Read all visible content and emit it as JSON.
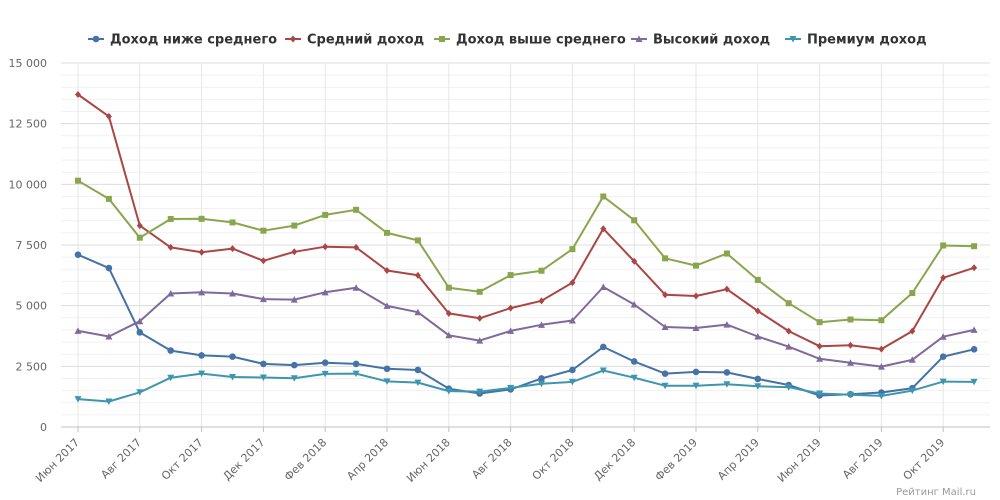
{
  "chart_data": {
    "type": "line",
    "title": "",
    "xlabel": "",
    "ylabel": "",
    "ylim": [
      0,
      15000
    ],
    "y_ticks": [
      0,
      2500,
      5000,
      7500,
      10000,
      12500,
      15000
    ],
    "y_tick_labels": [
      "0",
      "2 500",
      "5 000",
      "7 500",
      "10 000",
      "12 500",
      "15 000"
    ],
    "x_tick_labels": [
      "Июн 2017",
      "Авг 2017",
      "Окт 2017",
      "Дек 2017",
      "Фев 2018",
      "Апр 2018",
      "Июн 2018",
      "Авг 2018",
      "Окт 2018",
      "Дек 2018",
      "Фев 2019",
      "Апр 2019",
      "Июн 2019",
      "Авг 2019",
      "Окт 2019"
    ],
    "legend_position": "top",
    "grid": true,
    "series": [
      {
        "name": "Доход ниже среднего",
        "color": "#4572a7",
        "marker": "circle",
        "values": [
          7100,
          6550,
          3900,
          3150,
          2950,
          2900,
          2600,
          2550,
          2650,
          2600,
          2400,
          2350,
          1580,
          1380,
          1550,
          2000,
          2350,
          3300,
          2700,
          2200,
          2270,
          2250,
          1980,
          1730,
          1300,
          1350,
          1420,
          1600,
          2900,
          3200
        ]
      },
      {
        "name": "Средний доход",
        "color": "#aa4643",
        "marker": "diamond",
        "values": [
          13700,
          12800,
          8300,
          7400,
          7200,
          7350,
          6850,
          7220,
          7430,
          7400,
          6450,
          6250,
          4680,
          4480,
          4900,
          5200,
          5950,
          8170,
          6830,
          5450,
          5400,
          5680,
          4780,
          3950,
          3330,
          3370,
          3210,
          3950,
          6150,
          6560
        ]
      },
      {
        "name": "Доход выше среднего",
        "color": "#89a54e",
        "marker": "square",
        "values": [
          10150,
          9400,
          7800,
          8570,
          8580,
          8430,
          8090,
          8300,
          8740,
          8950,
          8000,
          7690,
          5740,
          5570,
          6260,
          6440,
          7330,
          9500,
          8520,
          6950,
          6650,
          7150,
          6060,
          5100,
          4320,
          4430,
          4400,
          5520,
          7480,
          7450
        ]
      },
      {
        "name": "Высокий доход",
        "color": "#80699b",
        "marker": "triangle",
        "values": [
          3960,
          3730,
          4360,
          5500,
          5550,
          5500,
          5270,
          5250,
          5550,
          5740,
          4990,
          4730,
          3780,
          3560,
          3960,
          4210,
          4390,
          5770,
          5050,
          4120,
          4080,
          4220,
          3730,
          3310,
          2810,
          2650,
          2490,
          2770,
          3720,
          4000
        ]
      },
      {
        "name": "Премиум доход",
        "color": "#3d96ae",
        "marker": "triangle-down",
        "values": [
          1150,
          1050,
          1430,
          2030,
          2200,
          2060,
          2040,
          2010,
          2190,
          2200,
          1880,
          1830,
          1480,
          1460,
          1610,
          1780,
          1860,
          2330,
          2030,
          1700,
          1700,
          1760,
          1680,
          1640,
          1380,
          1330,
          1280,
          1500,
          1870,
          1860
        ]
      }
    ]
  },
  "footer": {
    "credit": "Рейтинг Mail.ru"
  }
}
